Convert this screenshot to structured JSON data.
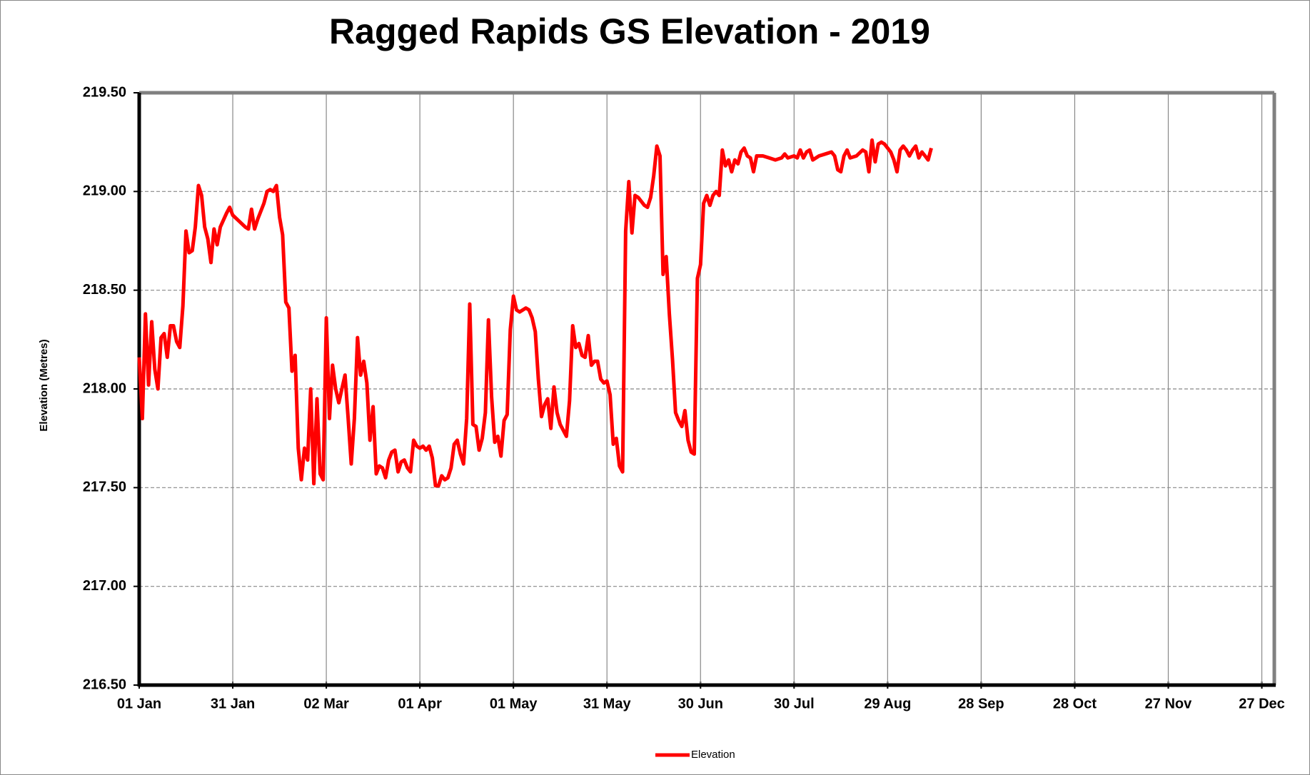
{
  "chart_data": {
    "type": "line",
    "title": "Ragged Rapids GS Elevation - 2019",
    "ylabel": "Elevation (Metres)",
    "xlim": [
      0,
      364
    ],
    "xticks": [
      {
        "value": 0,
        "label": "01 Jan"
      },
      {
        "value": 30,
        "label": "31 Jan"
      },
      {
        "value": 60,
        "label": "02 Mar"
      },
      {
        "value": 90,
        "label": "01 Apr"
      },
      {
        "value": 120,
        "label": "01 May"
      },
      {
        "value": 150,
        "label": "31 May"
      },
      {
        "value": 180,
        "label": "30 Jun"
      },
      {
        "value": 210,
        "label": "30 Jul"
      },
      {
        "value": 240,
        "label": "29 Aug"
      },
      {
        "value": 270,
        "label": "28 Sep"
      },
      {
        "value": 300,
        "label": "28 Oct"
      },
      {
        "value": 330,
        "label": "27 Nov"
      },
      {
        "value": 360,
        "label": "27 Dec"
      }
    ],
    "ylim": [
      216.5,
      219.5
    ],
    "yticks": [
      {
        "value": 216.5,
        "label": "216.50"
      },
      {
        "value": 217,
        "label": "217.00"
      },
      {
        "value": 217.5,
        "label": "217.50"
      },
      {
        "value": 218,
        "label": "218.00"
      },
      {
        "value": 218.5,
        "label": "218.50"
      },
      {
        "value": 219,
        "label": "219.00"
      },
      {
        "value": 219.5,
        "label": "219.50"
      }
    ],
    "grid": true,
    "legend": "bottom",
    "x": [
      0,
      1,
      2,
      3,
      4,
      5,
      6,
      7,
      8,
      9,
      10,
      11,
      12,
      13,
      14,
      15,
      16,
      17,
      18,
      19,
      20,
      21,
      22,
      23,
      24,
      25,
      26,
      28,
      29,
      30,
      32,
      34,
      35,
      36,
      37,
      38,
      40,
      41,
      42,
      43,
      44,
      45,
      46,
      47,
      48,
      49,
      50,
      51,
      52,
      53,
      54,
      55,
      56,
      57,
      58,
      59,
      60,
      61,
      62,
      63,
      64,
      65,
      66,
      67,
      68,
      69,
      70,
      71,
      72,
      73,
      74,
      75,
      76,
      77,
      78,
      79,
      80,
      81,
      82,
      83,
      84,
      85,
      86,
      87,
      88,
      89,
      90,
      91,
      92,
      93,
      94,
      95,
      96,
      97,
      98,
      99,
      100,
      101,
      102,
      103,
      104,
      105,
      106,
      107,
      108,
      109,
      110,
      111,
      112,
      113,
      114,
      115,
      116,
      117,
      118,
      119,
      120,
      121,
      122,
      124,
      125,
      126,
      127,
      128,
      129,
      130,
      131,
      132,
      133,
      134,
      135,
      136,
      137,
      138,
      139,
      140,
      141,
      142,
      143,
      144,
      145,
      146,
      147,
      148,
      149,
      150,
      151,
      152,
      153,
      154,
      155,
      156,
      157,
      158,
      159,
      160,
      162,
      163,
      164,
      165,
      166,
      167,
      168,
      169,
      170,
      171,
      172,
      173,
      174,
      175,
      176,
      177,
      178,
      179,
      180,
      181,
      182,
      183,
      184,
      185,
      186,
      187,
      188,
      189,
      190,
      191,
      192,
      193,
      194,
      195,
      196,
      197,
      198,
      200,
      202,
      204,
      206,
      207,
      208,
      210,
      211,
      212,
      213,
      214,
      215,
      216,
      218,
      220,
      222,
      223,
      224,
      225,
      226,
      227,
      228,
      230,
      232,
      233,
      234,
      235,
      236,
      237,
      238,
      239,
      241,
      242,
      243,
      244,
      245,
      246,
      247,
      248,
      249,
      250,
      251,
      252,
      253,
      254
    ],
    "series": [
      {
        "name": "Elevation",
        "color": "#ff0000",
        "values": [
          218.16,
          217.85,
          218.38,
          218.02,
          218.34,
          218.1,
          218.0,
          218.26,
          218.28,
          218.16,
          218.32,
          218.32,
          218.24,
          218.21,
          218.42,
          218.8,
          218.69,
          218.7,
          218.82,
          219.03,
          218.98,
          218.82,
          218.76,
          218.64,
          218.81,
          218.73,
          218.82,
          218.89,
          218.92,
          218.88,
          218.85,
          218.82,
          218.81,
          218.91,
          218.81,
          218.86,
          218.94,
          219.0,
          219.01,
          219.0,
          219.03,
          218.87,
          218.78,
          218.44,
          218.41,
          218.09,
          218.17,
          217.7,
          217.54,
          217.7,
          217.64,
          218.0,
          217.52,
          217.95,
          217.57,
          217.54,
          218.36,
          217.85,
          218.12,
          218.0,
          217.93,
          218.0,
          218.07,
          217.85,
          217.62,
          217.85,
          218.26,
          218.07,
          218.14,
          218.03,
          217.74,
          217.91,
          217.57,
          217.61,
          217.6,
          217.55,
          217.64,
          217.68,
          217.69,
          217.58,
          217.63,
          217.64,
          217.6,
          217.58,
          217.74,
          217.71,
          217.7,
          217.71,
          217.69,
          217.71,
          217.65,
          217.51,
          217.51,
          217.56,
          217.54,
          217.55,
          217.6,
          217.72,
          217.74,
          217.67,
          217.62,
          217.85,
          218.43,
          217.82,
          217.81,
          217.69,
          217.75,
          217.88,
          218.35,
          217.96,
          217.73,
          217.76,
          217.66,
          217.84,
          217.87,
          218.3,
          218.47,
          218.4,
          218.39,
          218.41,
          218.4,
          218.36,
          218.29,
          218.05,
          217.86,
          217.92,
          217.95,
          217.8,
          218.01,
          217.88,
          217.82,
          217.79,
          217.76,
          217.94,
          218.32,
          218.21,
          218.23,
          218.17,
          218.16,
          218.27,
          218.12,
          218.14,
          218.14,
          218.05,
          218.03,
          218.04,
          217.97,
          217.72,
          217.75,
          217.61,
          217.58,
          218.8,
          219.05,
          218.79,
          218.98,
          218.97,
          218.93,
          218.92,
          218.97,
          219.08,
          219.23,
          219.18,
          218.58,
          218.67,
          218.38,
          218.15,
          217.88,
          217.84,
          217.81,
          217.89,
          217.74,
          217.68,
          217.67,
          218.56,
          218.63,
          218.94,
          218.98,
          218.93,
          218.98,
          219.0,
          218.98,
          219.21,
          219.13,
          219.16,
          219.1,
          219.16,
          219.14,
          219.2,
          219.22,
          219.18,
          219.17,
          219.1,
          219.18,
          219.18,
          219.17,
          219.16,
          219.17,
          219.19,
          219.17,
          219.18,
          219.17,
          219.21,
          219.17,
          219.2,
          219.21,
          219.16,
          219.18,
          219.19,
          219.2,
          219.18,
          219.11,
          219.1,
          219.18,
          219.21,
          219.17,
          219.18,
          219.21,
          219.2,
          219.1,
          219.26,
          219.15,
          219.24,
          219.25,
          219.24,
          219.2,
          219.16,
          219.1,
          219.21,
          219.23,
          219.21,
          219.18,
          219.21,
          219.23,
          219.17,
          219.2,
          219.18,
          219.16,
          219.22
        ]
      }
    ]
  }
}
